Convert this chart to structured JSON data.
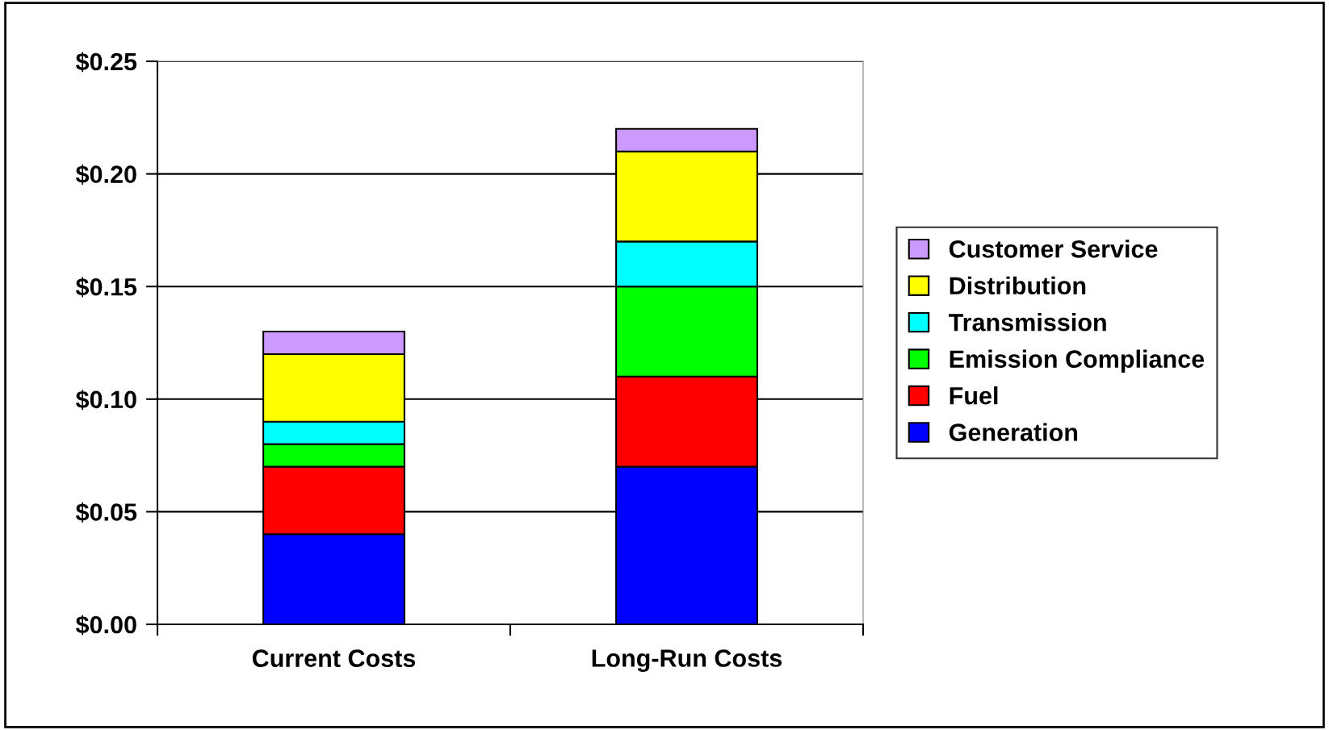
{
  "chart_data": {
    "type": "bar",
    "stacked": true,
    "categories": [
      "Current Costs",
      "Long-Run Costs"
    ],
    "series": [
      {
        "name": "Generation",
        "color": "#0000ff",
        "values": [
          0.04,
          0.07
        ]
      },
      {
        "name": "Fuel",
        "color": "#ff0000",
        "values": [
          0.03,
          0.04
        ]
      },
      {
        "name": "Emission Compliance",
        "color": "#00ff00",
        "values": [
          0.01,
          0.04
        ]
      },
      {
        "name": "Transmission",
        "color": "#00ffff",
        "values": [
          0.01,
          0.02
        ]
      },
      {
        "name": "Distribution",
        "color": "#ffff00",
        "values": [
          0.03,
          0.04
        ]
      },
      {
        "name": "Customer Service",
        "color": "#cc99ff",
        "values": [
          0.01,
          0.01
        ]
      }
    ],
    "ylim": [
      0,
      0.25
    ],
    "yticks": [
      {
        "value": 0,
        "label": "$0.00"
      },
      {
        "value": 0.05,
        "label": "$0.05"
      },
      {
        "value": 0.1,
        "label": "$0.10"
      },
      {
        "value": 0.15,
        "label": "$0.15"
      },
      {
        "value": 0.2,
        "label": "$0.20"
      },
      {
        "value": 0.25,
        "label": "$0.25"
      }
    ],
    "grid": "y",
    "legend": "right"
  }
}
